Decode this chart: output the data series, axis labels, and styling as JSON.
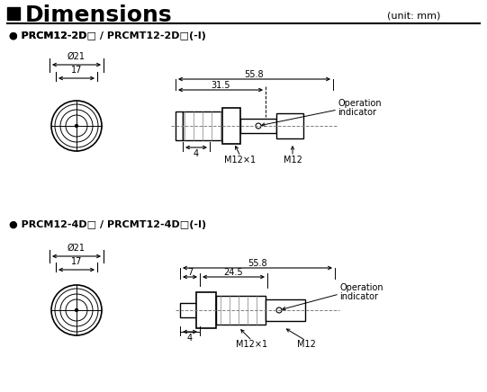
{
  "title": "Dimensions",
  "unit_label": "(unit: mm)",
  "bg_color": "#ffffff",
  "line_color": "#000000",
  "gray_color": "#808080",
  "section1_label": "● PRCM12-2D□ / PRCMT12-2D□(-I)",
  "section2_label": "● PRCM12-4D□ / PRCMT12-4D□(-I)",
  "dim_color": "#333333"
}
